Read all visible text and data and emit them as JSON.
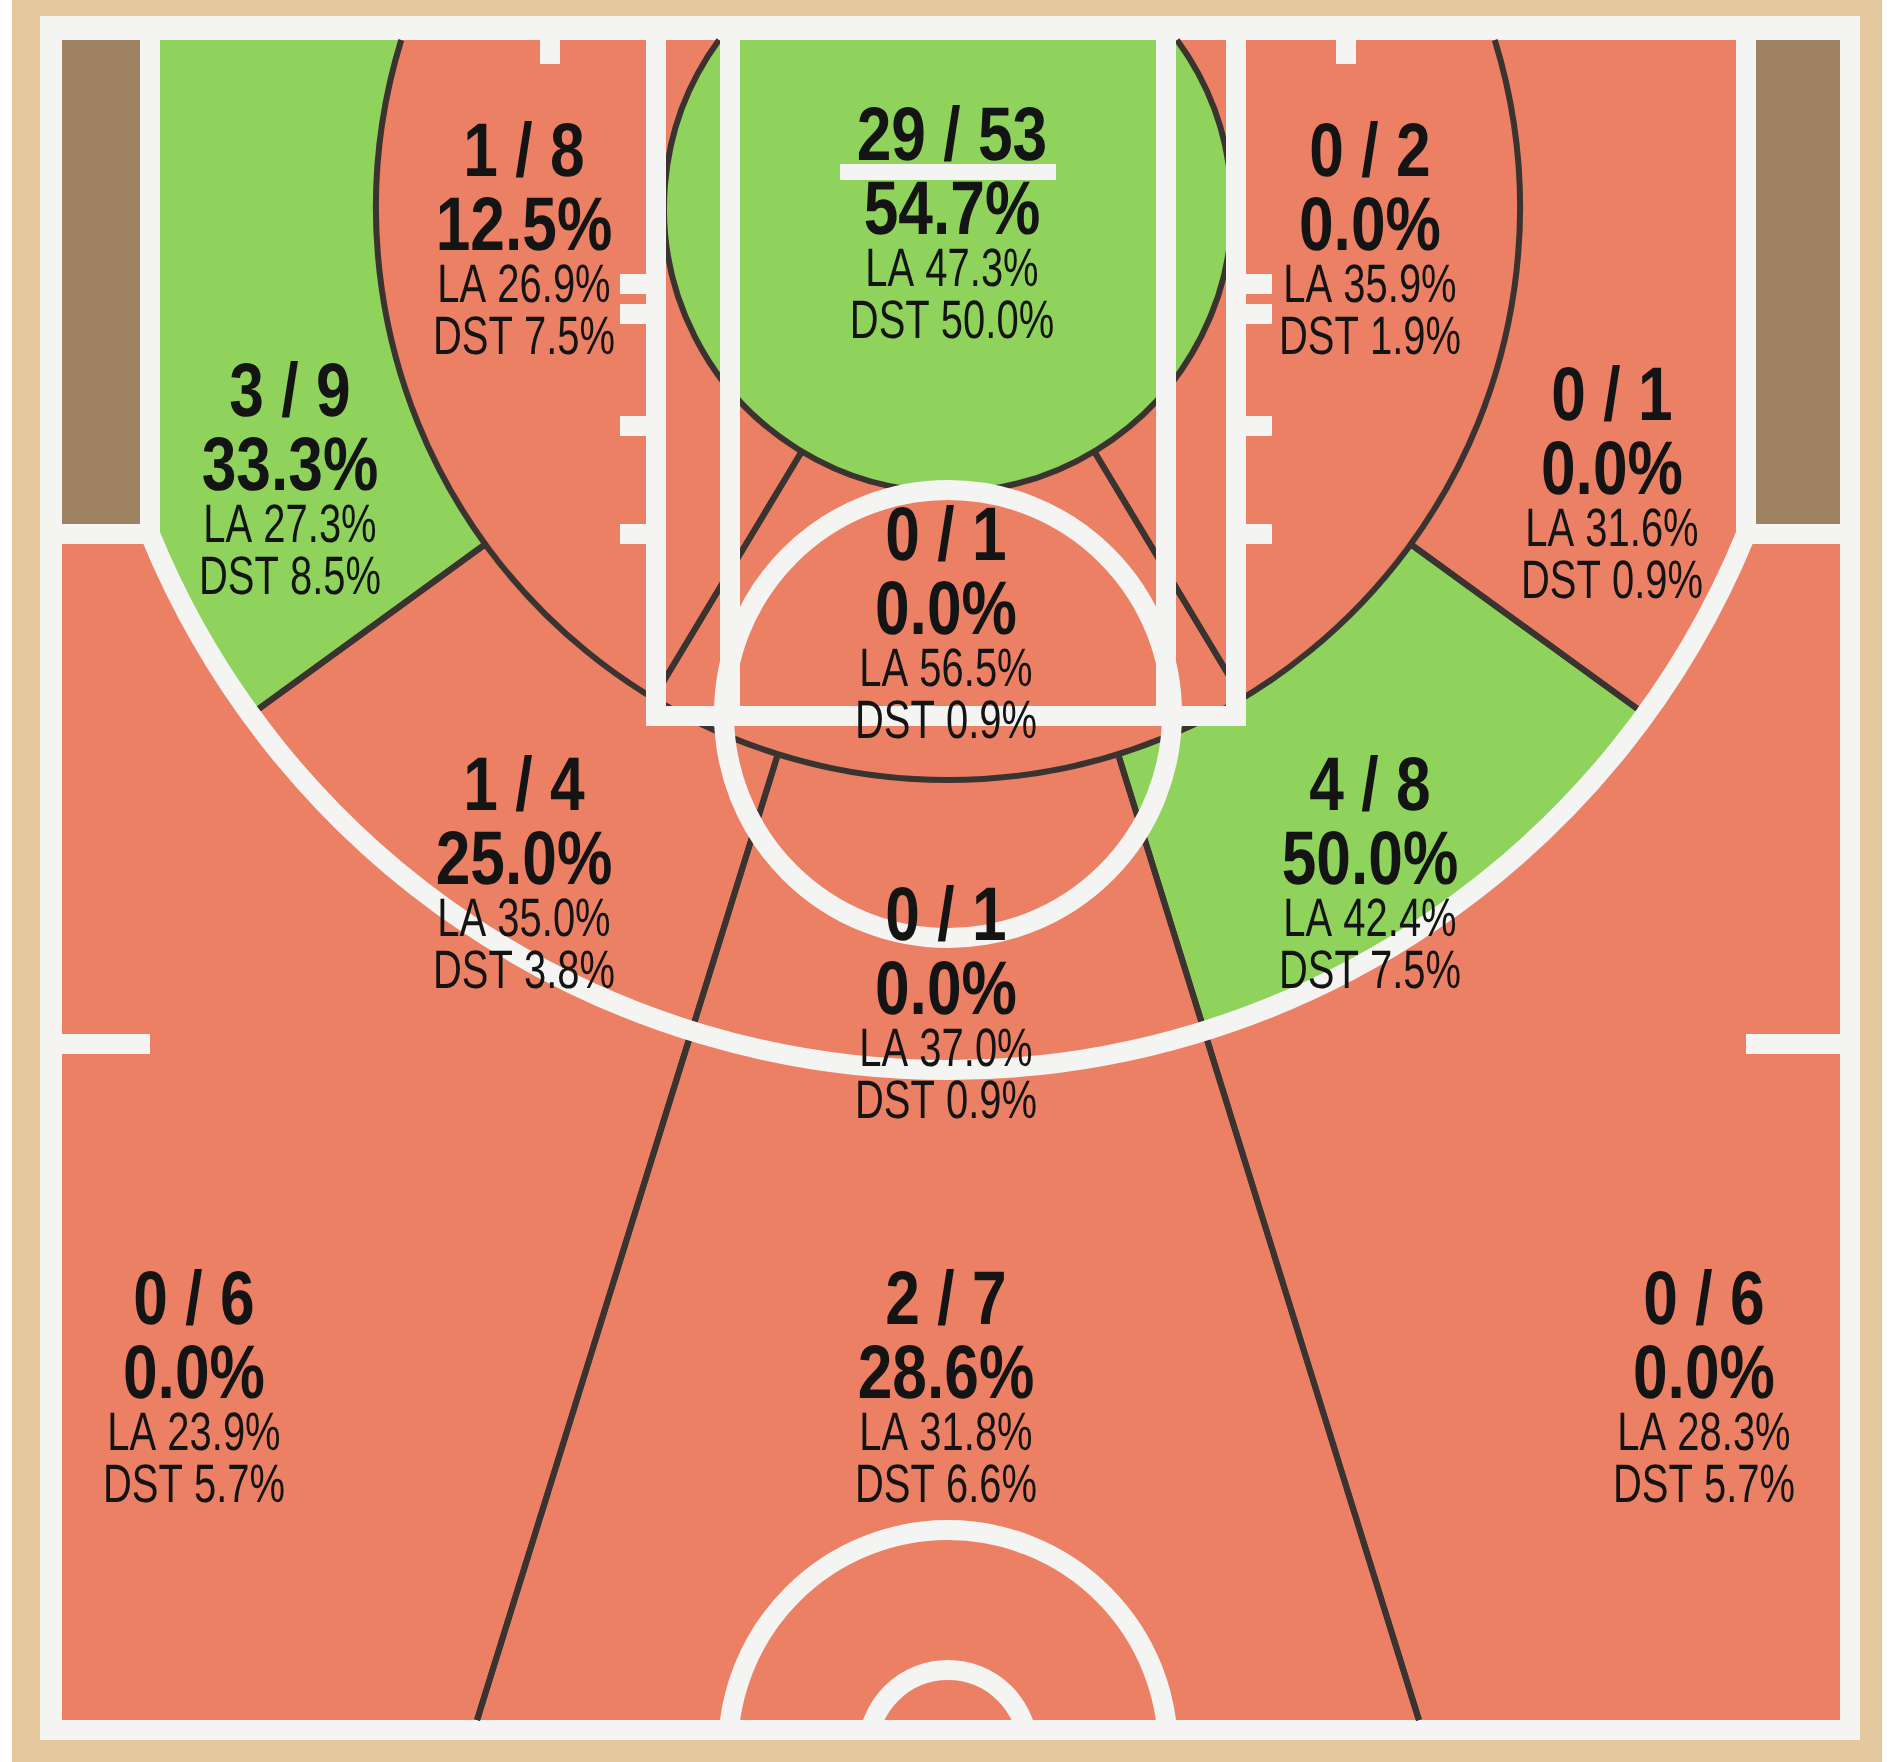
{
  "chart_data": {
    "type": "other",
    "categories": [
      "1 / 8",
      "29 / 53",
      "0 / 2",
      "3 / 9",
      "0 / 1",
      "0 / 1",
      "1 / 4",
      "4 / 8",
      "0 / 1",
      "0 / 6",
      "2 / 7",
      "0 / 6",
      null,
      null
    ],
    "series": [
      {
        "values": [
          12.5,
          54.7,
          0.0,
          33.3,
          0.0,
          0.0,
          25.0,
          50.0,
          0.0,
          0.0,
          28.6,
          0.0,
          null,
          null
        ],
        "value_labels": [
          "12.5%",
          "54.7%",
          "0.0%",
          "33.3%",
          "0.0%",
          "0.0%",
          "25.0%",
          "50.0%",
          "0.0%",
          "0.0%",
          "28.6%",
          "0.0%",
          null,
          null
        ],
        "colors": [
          "#ec8065",
          "#8fd35c",
          "#ec8065",
          "#8fd35c",
          "#ec8065",
          "#ec8065",
          "#ec8065",
          "#8fd35c",
          "#ec8065",
          "#ec8065",
          "#ec8065",
          "#ec8065",
          "#9e8262",
          "#9e8262"
        ]
      },
      {
        "name": "LA",
        "values": [
          26.9,
          47.3,
          35.9,
          27.3,
          31.6,
          56.5,
          35.0,
          42.4,
          37.0,
          23.9,
          31.8,
          28.3,
          null,
          null
        ],
        "value_labels": [
          "26.9%",
          "47.3%",
          "35.9%",
          "27.3%",
          "31.6%",
          "56.5%",
          "35.0%",
          "42.4%",
          "37.0%",
          "23.9%",
          "31.8%",
          "28.3%",
          null,
          null
        ]
      },
      {
        "name": "DST",
        "values": [
          7.5,
          50.0,
          1.9,
          8.5,
          0.9,
          0.9,
          3.8,
          7.5,
          0.9,
          5.7,
          6.6,
          5.7,
          null,
          null
        ],
        "value_labels": [
          "7.5%",
          "50.0%",
          "1.9%",
          "8.5%",
          "0.9%",
          "0.9%",
          "3.8%",
          "7.5%",
          "0.9%",
          "5.7%",
          "6.6%",
          "5.7%",
          null,
          null
        ]
      }
    ]
  }
}
